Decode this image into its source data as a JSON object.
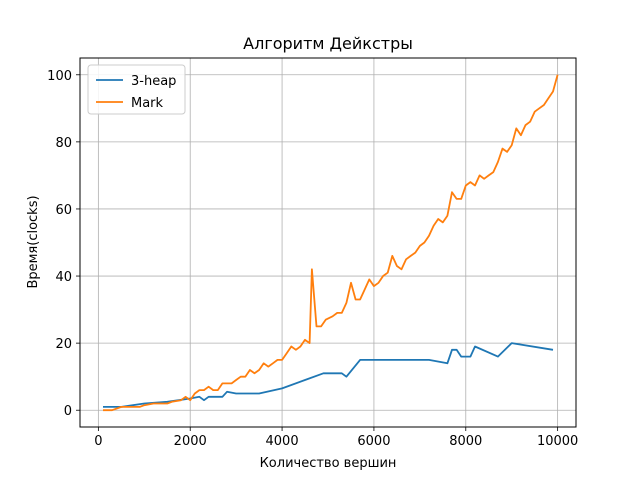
{
  "chart_data": {
    "type": "line",
    "title": "Алгоритм Дейкстры",
    "xlabel": "Количество вершин",
    "ylabel": "Время(clocks)",
    "xlim": [
      -400,
      10400
    ],
    "ylim": [
      -5,
      105
    ],
    "xticks": [
      0,
      2000,
      4000,
      6000,
      8000,
      10000
    ],
    "yticks": [
      0,
      20,
      40,
      60,
      80,
      100
    ],
    "grid": true,
    "legend_position": "top-left",
    "series": [
      {
        "name": "3-heap",
        "color": "#1f77b4",
        "points": [
          [
            100,
            1
          ],
          [
            500,
            1
          ],
          [
            1000,
            2
          ],
          [
            1500,
            2.5
          ],
          [
            2000,
            3.5
          ],
          [
            2200,
            4
          ],
          [
            2300,
            3
          ],
          [
            2400,
            4
          ],
          [
            2700,
            4
          ],
          [
            2800,
            5.5
          ],
          [
            3000,
            5
          ],
          [
            3500,
            5
          ],
          [
            4000,
            6.5
          ],
          [
            4500,
            9
          ],
          [
            4900,
            11
          ],
          [
            5300,
            11
          ],
          [
            5400,
            10
          ],
          [
            5700,
            15
          ],
          [
            6000,
            15
          ],
          [
            6500,
            15
          ],
          [
            7200,
            15
          ],
          [
            7600,
            14
          ],
          [
            7700,
            18
          ],
          [
            7800,
            18
          ],
          [
            7900,
            16
          ],
          [
            8100,
            16
          ],
          [
            8200,
            19
          ],
          [
            8700,
            16
          ],
          [
            9000,
            20
          ],
          [
            9900,
            18
          ]
        ]
      },
      {
        "name": "Mark",
        "color": "#ff7f0e",
        "points": [
          [
            100,
            0
          ],
          [
            300,
            0
          ],
          [
            500,
            1
          ],
          [
            900,
            1
          ],
          [
            1000,
            1.5
          ],
          [
            1200,
            2
          ],
          [
            1500,
            2
          ],
          [
            1600,
            2.5
          ],
          [
            1800,
            3
          ],
          [
            1900,
            4
          ],
          [
            2000,
            3
          ],
          [
            2100,
            5
          ],
          [
            2200,
            6
          ],
          [
            2300,
            6
          ],
          [
            2400,
            7
          ],
          [
            2500,
            6
          ],
          [
            2600,
            6
          ],
          [
            2700,
            8
          ],
          [
            2900,
            8
          ],
          [
            3000,
            9
          ],
          [
            3100,
            10
          ],
          [
            3200,
            10
          ],
          [
            3300,
            12
          ],
          [
            3400,
            11
          ],
          [
            3500,
            12
          ],
          [
            3600,
            14
          ],
          [
            3700,
            13
          ],
          [
            3800,
            14
          ],
          [
            3900,
            15
          ],
          [
            4000,
            15
          ],
          [
            4100,
            17
          ],
          [
            4200,
            19
          ],
          [
            4300,
            18
          ],
          [
            4400,
            19
          ],
          [
            4500,
            21
          ],
          [
            4600,
            20
          ],
          [
            4650,
            42
          ],
          [
            4750,
            25
          ],
          [
            4850,
            25
          ],
          [
            4950,
            27
          ],
          [
            5100,
            28
          ],
          [
            5200,
            29
          ],
          [
            5300,
            29
          ],
          [
            5400,
            32
          ],
          [
            5500,
            38
          ],
          [
            5600,
            33
          ],
          [
            5700,
            33
          ],
          [
            5800,
            36
          ],
          [
            5900,
            39
          ],
          [
            6000,
            37
          ],
          [
            6100,
            38
          ],
          [
            6200,
            40
          ],
          [
            6300,
            41
          ],
          [
            6400,
            46
          ],
          [
            6500,
            43
          ],
          [
            6600,
            42
          ],
          [
            6700,
            45
          ],
          [
            6800,
            46
          ],
          [
            6900,
            47
          ],
          [
            7000,
            49
          ],
          [
            7100,
            50
          ],
          [
            7200,
            52
          ],
          [
            7300,
            55
          ],
          [
            7400,
            57
          ],
          [
            7500,
            56
          ],
          [
            7600,
            58
          ],
          [
            7700,
            65
          ],
          [
            7800,
            63
          ],
          [
            7900,
            63
          ],
          [
            8000,
            67
          ],
          [
            8100,
            68
          ],
          [
            8200,
            67
          ],
          [
            8300,
            70
          ],
          [
            8400,
            69
          ],
          [
            8500,
            70
          ],
          [
            8600,
            71
          ],
          [
            8700,
            74
          ],
          [
            8800,
            78
          ],
          [
            8900,
            77
          ],
          [
            9000,
            79
          ],
          [
            9100,
            84
          ],
          [
            9200,
            82
          ],
          [
            9300,
            85
          ],
          [
            9400,
            86
          ],
          [
            9500,
            89
          ],
          [
            9600,
            90
          ],
          [
            9700,
            91
          ],
          [
            9800,
            93
          ],
          [
            9900,
            95
          ],
          [
            10000,
            100
          ]
        ]
      }
    ]
  }
}
